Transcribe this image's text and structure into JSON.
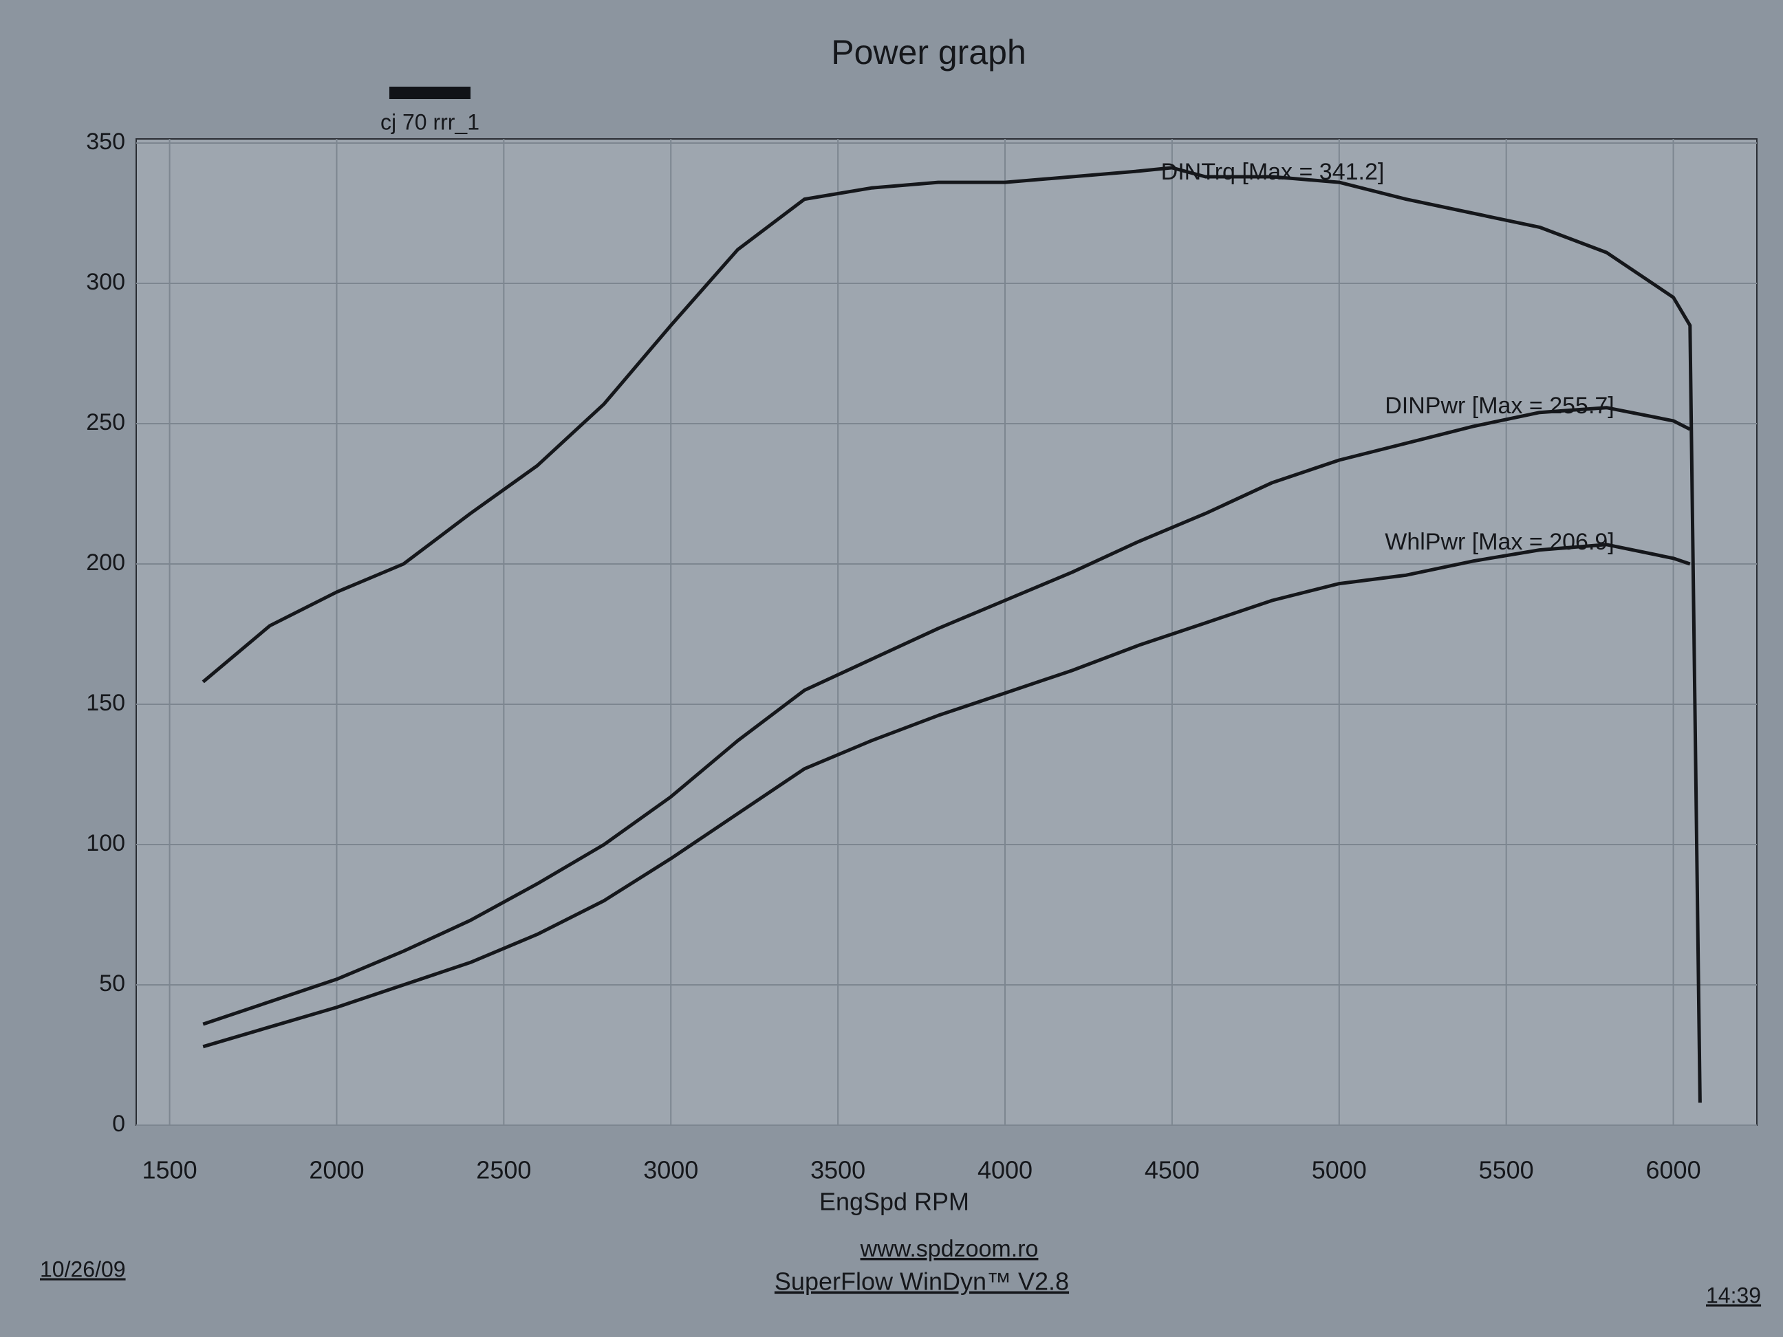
{
  "chart_data": {
    "type": "line",
    "title": "Power graph",
    "legend": {
      "label": "cj 70 rrr_1",
      "color": "#111318"
    },
    "x_label": "EngSpd  RPM",
    "footer": {
      "url": "www.spdzoom.ro",
      "software": "SuperFlow WinDyn™ V2.8",
      "date": "10/26/09",
      "time": "14:39"
    },
    "xlim": [
      1400,
      6250
    ],
    "ylim": [
      0,
      350
    ],
    "xticks": [
      1500,
      2000,
      2500,
      3000,
      3500,
      4000,
      4500,
      5000,
      5500,
      6000
    ],
    "yticks": [
      0,
      50,
      100,
      150,
      200,
      250,
      300,
      350
    ],
    "grid": true,
    "series": [
      {
        "label": "DINTrq [Max = 341.2]",
        "color": "#15171b",
        "x": [
          1600,
          1800,
          2000,
          2200,
          2400,
          2600,
          2800,
          3000,
          3200,
          3400,
          3600,
          3800,
          4000,
          4200,
          4400,
          4500,
          4600,
          4800,
          5000,
          5200,
          5400,
          5600,
          5800,
          6000,
          6050,
          6080
        ],
        "values": [
          158,
          178,
          190,
          200,
          218,
          235,
          257,
          285,
          312,
          330,
          334,
          336,
          336,
          338,
          340,
          341.2,
          338,
          338,
          336,
          330,
          325,
          320,
          311,
          295,
          285,
          8
        ]
      },
      {
        "label": "DINPwr [Max = 255.7]",
        "color": "#15171b",
        "x": [
          1600,
          1800,
          2000,
          2200,
          2400,
          2600,
          2800,
          3000,
          3200,
          3400,
          3600,
          3800,
          4000,
          4200,
          4400,
          4600,
          4800,
          5000,
          5200,
          5400,
          5600,
          5800,
          6000,
          6050
        ],
        "values": [
          36,
          44,
          52,
          62,
          73,
          86,
          100,
          117,
          137,
          155,
          166,
          177,
          187,
          197,
          208,
          218,
          229,
          237,
          243,
          249,
          254,
          255.7,
          251,
          248
        ]
      },
      {
        "label": "WhlPwr [Max = 206.9]",
        "color": "#15171b",
        "x": [
          1600,
          1800,
          2000,
          2200,
          2400,
          2600,
          2800,
          3000,
          3200,
          3400,
          3600,
          3800,
          4000,
          4200,
          4400,
          4600,
          4800,
          5000,
          5200,
          5400,
          5600,
          5800,
          6000,
          6050
        ],
        "values": [
          28,
          35,
          42,
          50,
          58,
          68,
          80,
          95,
          111,
          127,
          137,
          146,
          154,
          162,
          171,
          179,
          187,
          193,
          196,
          201,
          205,
          206.9,
          202,
          200
        ]
      }
    ]
  }
}
